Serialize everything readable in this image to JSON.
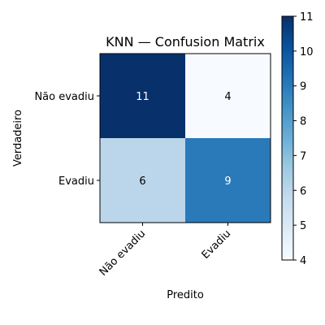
{
  "chart_data": {
    "type": "heatmap",
    "title": "KNN — Confusion Matrix",
    "xlabel": "Predito",
    "ylabel": "Verdadeiro",
    "x_categories": [
      "Não evadiu",
      "Evadiu"
    ],
    "y_categories": [
      "Não evadiu",
      "Evadiu"
    ],
    "values": [
      [
        11,
        4
      ],
      [
        6,
        9
      ]
    ],
    "colormap": "Blues",
    "color_range": [
      4,
      11
    ],
    "colorbar_ticks": [
      4,
      5,
      6,
      7,
      8,
      9,
      10,
      11
    ],
    "grid": false
  }
}
